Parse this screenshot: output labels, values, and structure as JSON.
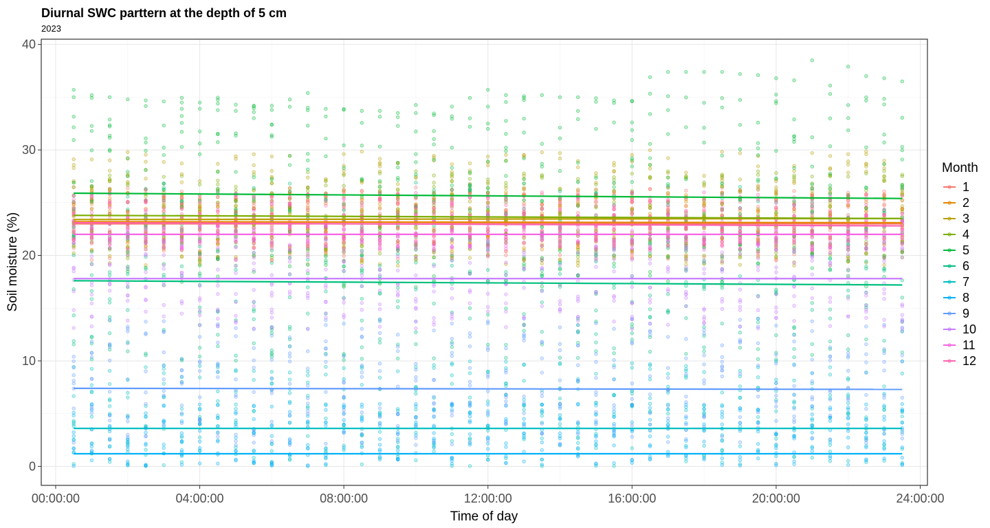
{
  "chart_data": {
    "type": "scatter",
    "title": "Diurnal SWC parttern at the depth of 5 cm",
    "subtitle": "2023",
    "xlabel": "Time of day",
    "ylabel": "Soil moisture (%)",
    "x_ticks": [
      "00:00:00",
      "04:00:00",
      "08:00:00",
      "12:00:00",
      "16:00:00",
      "20:00:00",
      "24:00:00"
    ],
    "y_ticks": [
      "0",
      "10",
      "20",
      "30",
      "40"
    ],
    "xlim_hours": [
      -0.4,
      24.2
    ],
    "ylim": [
      -1.8,
      40.5
    ],
    "grid": true,
    "legend": {
      "title": "Month",
      "placement": "right"
    },
    "series": [
      {
        "name": "1",
        "color": "#F8766D",
        "mean_line": [
          23.0,
          23.0
        ],
        "spread": [
          19.5,
          26.5
        ]
      },
      {
        "name": "2",
        "color": "#E58700",
        "mean_line": [
          23.2,
          23.1
        ],
        "spread": [
          20.5,
          26.0
        ]
      },
      {
        "name": "3",
        "color": "#B79F00",
        "mean_line": [
          23.4,
          23.5
        ],
        "spread": [
          19.0,
          30.0
        ]
      },
      {
        "name": "4",
        "color": "#7CAE00",
        "mean_line": [
          23.8,
          23.5
        ],
        "spread": [
          19.5,
          28.0
        ]
      },
      {
        "name": "5",
        "color": "#00BA38",
        "mean_line": [
          25.9,
          25.4
        ],
        "spread": [
          17.0,
          35.5
        ]
      },
      {
        "name": "6",
        "color": "#00BF7D",
        "mean_line": [
          17.6,
          17.2
        ],
        "spread": [
          10.0,
          27.0
        ]
      },
      {
        "name": "7",
        "color": "#00BFC4",
        "mean_line": [
          3.6,
          3.6
        ],
        "spread": [
          0.0,
          10.0
        ]
      },
      {
        "name": "8",
        "color": "#00B0F6",
        "mean_line": [
          1.2,
          1.2
        ],
        "spread": [
          0.0,
          6.0
        ]
      },
      {
        "name": "9",
        "color": "#619CFF",
        "mean_line": [
          7.4,
          7.3
        ],
        "spread": [
          2.0,
          14.0
        ]
      },
      {
        "name": "10",
        "color": "#C77CFF",
        "mean_line": [
          17.8,
          17.8
        ],
        "spread": [
          13.0,
          22.0
        ]
      },
      {
        "name": "11",
        "color": "#F564E3",
        "mean_line": [
          22.0,
          22.0
        ],
        "spread": [
          20.5,
          24.0
        ]
      },
      {
        "name": "12",
        "color": "#FF64B0",
        "mean_line": [
          23.1,
          22.8
        ],
        "spread": [
          21.0,
          26.0
        ]
      }
    ],
    "upper_outliers": [
      {
        "t": 0.5,
        "v": 35.7
      },
      {
        "t": 1.0,
        "v": 35.2
      },
      {
        "t": 1.5,
        "v": 35.0
      },
      {
        "t": 2.0,
        "v": 34.8
      },
      {
        "t": 2.5,
        "v": 34.7
      },
      {
        "t": 3.0,
        "v": 34.6
      },
      {
        "t": 3.5,
        "v": 34.5
      },
      {
        "t": 4.0,
        "v": 34.5
      },
      {
        "t": 4.5,
        "v": 34.4
      },
      {
        "t": 5.0,
        "v": 34.3
      },
      {
        "t": 5.5,
        "v": 34.2
      },
      {
        "t": 6.0,
        "v": 34.2
      },
      {
        "t": 6.5,
        "v": 34.1
      },
      {
        "t": 7.0,
        "v": 34.0
      },
      {
        "t": 7.5,
        "v": 33.9
      },
      {
        "t": 8.0,
        "v": 33.8
      },
      {
        "t": 8.5,
        "v": 33.7
      },
      {
        "t": 9.0,
        "v": 33.7
      },
      {
        "t": 9.5,
        "v": 33.5
      },
      {
        "t": 10.0,
        "v": 33.5
      },
      {
        "t": 10.5,
        "v": 33.3
      },
      {
        "t": 11.0,
        "v": 33.2
      },
      {
        "t": 11.5,
        "v": 33.0
      },
      {
        "t": 12.0,
        "v": 35.7
      },
      {
        "t": 12.5,
        "v": 35.2
      },
      {
        "t": 13.0,
        "v": 35.1
      },
      {
        "t": 13.5,
        "v": 35.2
      },
      {
        "t": 14.0,
        "v": 35.0
      },
      {
        "t": 14.5,
        "v": 35.0
      },
      {
        "t": 15.0,
        "v": 34.9
      },
      {
        "t": 15.5,
        "v": 34.7
      },
      {
        "t": 16.0,
        "v": 34.6
      },
      {
        "t": 16.5,
        "v": 36.9
      },
      {
        "t": 17.0,
        "v": 37.4
      },
      {
        "t": 17.5,
        "v": 37.4
      },
      {
        "t": 18.0,
        "v": 37.4
      },
      {
        "t": 18.5,
        "v": 37.4
      },
      {
        "t": 19.0,
        "v": 37.2
      },
      {
        "t": 19.5,
        "v": 37.1
      },
      {
        "t": 20.0,
        "v": 36.8
      },
      {
        "t": 20.5,
        "v": 36.6
      },
      {
        "t": 21.0,
        "v": 38.5
      },
      {
        "t": 21.5,
        "v": 36.1
      },
      {
        "t": 22.0,
        "v": 37.9
      },
      {
        "t": 22.5,
        "v": 37.0
      },
      {
        "t": 23.0,
        "v": 36.8
      },
      {
        "t": 23.5,
        "v": 36.5
      }
    ]
  }
}
